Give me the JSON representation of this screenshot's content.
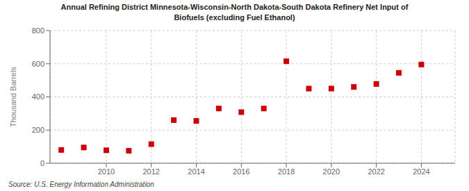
{
  "chart_data": {
    "type": "scatter",
    "title": "Annual Refining District Minnesota-Wisconsin-North Dakota-South Dakota Refinery Net Input of\nBiofuels (excluding Fuel Ethanol)",
    "y_label": "Thousand Barrels",
    "source": "Source: U.S. Energy Information Administration",
    "x": [
      2008,
      2009,
      2010,
      2011,
      2012,
      2013,
      2014,
      2015,
      2016,
      2017,
      2018,
      2019,
      2020,
      2021,
      2022,
      2023,
      2024
    ],
    "values": [
      80,
      95,
      78,
      75,
      115,
      260,
      255,
      330,
      308,
      330,
      615,
      450,
      450,
      460,
      478,
      545,
      595
    ],
    "color": "#cc0000",
    "marker": "square",
    "xlim": [
      2007.5,
      2025.5
    ],
    "xticks": [
      2010,
      2012,
      2014,
      2016,
      2018,
      2020,
      2022,
      2024
    ],
    "ylim": [
      0,
      800
    ],
    "yticks": [
      0,
      200,
      400,
      600,
      800
    ],
    "grid": true
  }
}
